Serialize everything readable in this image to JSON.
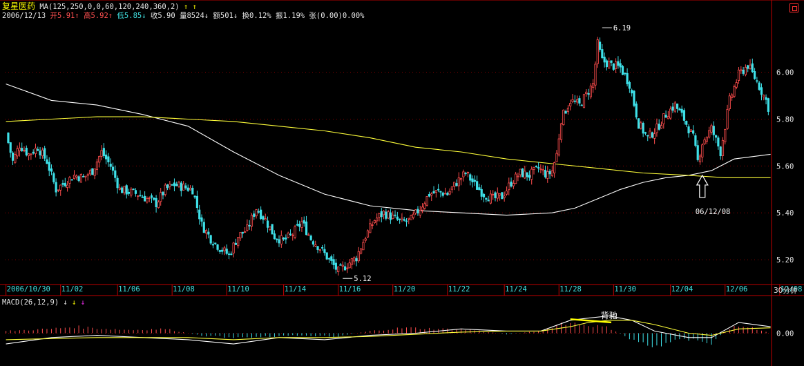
{
  "header": {
    "stock_name": "复星医药",
    "ma_label": "MA(125,250,0,0,60,120,240,360,2)",
    "ma_arrows": "↑ ↑",
    "date": "2006/12/13",
    "open_label": "开",
    "open_value": "5.91↑",
    "high_label": "高",
    "high_value": "5.92↑",
    "low_label": "低",
    "low_value": "5.85↓",
    "close_label": "收",
    "close_value": "5.90",
    "volume": "量8524↓",
    "amount": "额501↓",
    "turnover": "换0.12%",
    "amplitude": "振1.19%",
    "change": "张(0.00)0.00%"
  },
  "macd_header": {
    "label": "MACD(26,12,9)",
    "arrow1": "↓",
    "arrow2": "↓",
    "arrow3": "↓"
  },
  "period_label": "30分钟",
  "colors": {
    "up": "#ff4d4d",
    "down": "#3ee0e8",
    "ma1": "#ffffff",
    "ma2": "#ffff3a",
    "grid": "#8a0000",
    "axis": "#c00000"
  },
  "chart_data": {
    "type": "candlestick",
    "timeframe": "30分钟",
    "x_tick_labels": [
      "2006/10/30",
      "11/02",
      "11/06",
      "11/08",
      "11/10",
      "11/14",
      "11/16",
      "11/20",
      "11/22",
      "11/24",
      "11/28",
      "11/30",
      "12/04",
      "12/06",
      "12/08"
    ],
    "y_ticks": [
      5.2,
      5.4,
      5.6,
      5.8,
      6.0
    ],
    "y_tick_labels": [
      "5.20",
      "5.40",
      "5.60",
      "5.80",
      "6.00"
    ],
    "ylim": [
      5.1,
      6.22
    ],
    "price_path": [
      [
        0,
        5.74
      ],
      [
        3,
        5.62
      ],
      [
        6,
        5.69
      ],
      [
        10,
        5.65
      ],
      [
        14,
        5.68
      ],
      [
        18,
        5.62
      ],
      [
        22,
        5.5
      ],
      [
        26,
        5.53
      ],
      [
        30,
        5.56
      ],
      [
        34,
        5.55
      ],
      [
        38,
        5.58
      ],
      [
        42,
        5.66
      ],
      [
        46,
        5.6
      ],
      [
        50,
        5.5
      ],
      [
        54,
        5.49
      ],
      [
        58,
        5.48
      ],
      [
        62,
        5.46
      ],
      [
        66,
        5.44
      ],
      [
        70,
        5.5
      ],
      [
        74,
        5.52
      ],
      [
        78,
        5.51
      ],
      [
        82,
        5.5
      ],
      [
        86,
        5.35
      ],
      [
        90,
        5.29
      ],
      [
        94,
        5.25
      ],
      [
        98,
        5.22
      ],
      [
        102,
        5.3
      ],
      [
        106,
        5.33
      ],
      [
        110,
        5.42
      ],
      [
        114,
        5.37
      ],
      [
        118,
        5.3
      ],
      [
        122,
        5.28
      ],
      [
        126,
        5.31
      ],
      [
        130,
        5.36
      ],
      [
        134,
        5.29
      ],
      [
        138,
        5.25
      ],
      [
        142,
        5.2
      ],
      [
        146,
        5.15
      ],
      [
        150,
        5.18
      ],
      [
        154,
        5.21
      ],
      [
        158,
        5.3
      ],
      [
        162,
        5.37
      ],
      [
        166,
        5.4
      ],
      [
        170,
        5.38
      ],
      [
        174,
        5.36
      ],
      [
        178,
        5.37
      ],
      [
        182,
        5.42
      ],
      [
        186,
        5.48
      ],
      [
        190,
        5.49
      ],
      [
        194,
        5.48
      ],
      [
        198,
        5.53
      ],
      [
        202,
        5.57
      ],
      [
        206,
        5.52
      ],
      [
        210,
        5.48
      ],
      [
        214,
        5.46
      ],
      [
        218,
        5.47
      ],
      [
        222,
        5.53
      ],
      [
        226,
        5.57
      ],
      [
        230,
        5.56
      ],
      [
        234,
        5.59
      ],
      [
        238,
        5.56
      ],
      [
        240,
        5.58
      ],
      [
        242,
        5.65
      ],
      [
        244,
        5.8
      ],
      [
        248,
        5.88
      ],
      [
        252,
        5.86
      ],
      [
        256,
        5.92
      ],
      [
        258,
        5.95
      ],
      [
        260,
        6.12
      ],
      [
        262,
        6.05
      ],
      [
        266,
        6.03
      ],
      [
        270,
        6.02
      ],
      [
        274,
        5.95
      ],
      [
        278,
        5.78
      ],
      [
        282,
        5.72
      ],
      [
        286,
        5.76
      ],
      [
        290,
        5.82
      ],
      [
        294,
        5.86
      ],
      [
        298,
        5.8
      ],
      [
        302,
        5.72
      ],
      [
        304,
        5.62
      ],
      [
        306,
        5.7
      ],
      [
        310,
        5.76
      ],
      [
        314,
        5.66
      ],
      [
        318,
        5.88
      ],
      [
        322,
        5.99
      ],
      [
        326,
        6.03
      ],
      [
        330,
        5.96
      ],
      [
        334,
        5.88
      ],
      [
        336,
        5.82
      ]
    ],
    "ma_white": [
      [
        0,
        5.95
      ],
      [
        20,
        5.88
      ],
      [
        40,
        5.86
      ],
      [
        60,
        5.82
      ],
      [
        80,
        5.77
      ],
      [
        100,
        5.66
      ],
      [
        120,
        5.56
      ],
      [
        140,
        5.48
      ],
      [
        160,
        5.43
      ],
      [
        180,
        5.41
      ],
      [
        200,
        5.4
      ],
      [
        220,
        5.39
      ],
      [
        240,
        5.4
      ],
      [
        250,
        5.42
      ],
      [
        260,
        5.46
      ],
      [
        270,
        5.5
      ],
      [
        280,
        5.53
      ],
      [
        290,
        5.55
      ],
      [
        300,
        5.56
      ],
      [
        310,
        5.58
      ],
      [
        320,
        5.63
      ],
      [
        336,
        5.65
      ]
    ],
    "ma_yellow": [
      [
        0,
        5.79
      ],
      [
        20,
        5.8
      ],
      [
        40,
        5.81
      ],
      [
        60,
        5.81
      ],
      [
        80,
        5.8
      ],
      [
        100,
        5.79
      ],
      [
        120,
        5.77
      ],
      [
        140,
        5.75
      ],
      [
        160,
        5.72
      ],
      [
        180,
        5.68
      ],
      [
        200,
        5.66
      ],
      [
        220,
        5.63
      ],
      [
        240,
        5.61
      ],
      [
        260,
        5.59
      ],
      [
        280,
        5.57
      ],
      [
        300,
        5.56
      ],
      [
        316,
        5.55
      ],
      [
        336,
        5.55
      ]
    ],
    "annotations": [
      {
        "text": "6.19",
        "x": 262,
        "y": 6.19,
        "kind": "high"
      },
      {
        "text": "5.12",
        "x": 148,
        "y": 5.12,
        "kind": "low"
      },
      {
        "text": "06/12/08",
        "x": 306,
        "y": 5.56,
        "kind": "arrow-date"
      },
      {
        "text": "背驰",
        "kind": "macd-label"
      }
    ],
    "macd": {
      "y_tick_labels": [
        "0.00"
      ],
      "ylim": [
        -0.12,
        0.12
      ],
      "hist_path": [
        [
          0,
          0.01
        ],
        [
          20,
          0.02
        ],
        [
          30,
          0.03
        ],
        [
          45,
          0.02
        ],
        [
          55,
          0.015
        ],
        [
          70,
          0.02
        ],
        [
          85,
          -0.01
        ],
        [
          100,
          -0.02
        ],
        [
          115,
          -0.015
        ],
        [
          130,
          -0.01
        ],
        [
          145,
          -0.015
        ],
        [
          160,
          0.01
        ],
        [
          175,
          0.025
        ],
        [
          190,
          0.02
        ],
        [
          205,
          0.015
        ],
        [
          220,
          -0.005
        ],
        [
          235,
          0.01
        ],
        [
          245,
          0.05
        ],
        [
          255,
          0.04
        ],
        [
          265,
          0.025
        ],
        [
          275,
          -0.03
        ],
        [
          285,
          -0.06
        ],
        [
          292,
          -0.04
        ],
        [
          300,
          -0.03
        ],
        [
          310,
          -0.045
        ],
        [
          316,
          0.01
        ],
        [
          322,
          0.035
        ],
        [
          330,
          0.02
        ],
        [
          336,
          0.0
        ]
      ],
      "dif_path": [
        [
          0,
          -0.05
        ],
        [
          20,
          -0.02
        ],
        [
          40,
          -0.01
        ],
        [
          60,
          -0.02
        ],
        [
          80,
          -0.03
        ],
        [
          100,
          -0.05
        ],
        [
          120,
          -0.02
        ],
        [
          140,
          -0.03
        ],
        [
          160,
          -0.01
        ],
        [
          180,
          0.0
        ],
        [
          200,
          0.02
        ],
        [
          220,
          0.01
        ],
        [
          235,
          0.01
        ],
        [
          248,
          0.06
        ],
        [
          256,
          0.07
        ],
        [
          265,
          0.08
        ],
        [
          275,
          0.06
        ],
        [
          285,
          0.01
        ],
        [
          300,
          -0.02
        ],
        [
          310,
          -0.02
        ],
        [
          322,
          0.05
        ],
        [
          336,
          0.03
        ]
      ],
      "dea_path": [
        [
          0,
          -0.03
        ],
        [
          20,
          -0.025
        ],
        [
          40,
          -0.02
        ],
        [
          60,
          -0.02
        ],
        [
          80,
          -0.02
        ],
        [
          100,
          -0.03
        ],
        [
          120,
          -0.02
        ],
        [
          140,
          -0.02
        ],
        [
          160,
          -0.015
        ],
        [
          180,
          -0.005
        ],
        [
          200,
          0.005
        ],
        [
          220,
          0.01
        ],
        [
          235,
          0.01
        ],
        [
          248,
          0.03
        ],
        [
          256,
          0.05
        ],
        [
          265,
          0.06
        ],
        [
          275,
          0.06
        ],
        [
          285,
          0.04
        ],
        [
          300,
          0.0
        ],
        [
          310,
          -0.01
        ],
        [
          322,
          0.02
        ],
        [
          336,
          0.025
        ]
      ],
      "divergence_segment": [
        [
          248,
          0.065
        ],
        [
          266,
          0.05
        ]
      ]
    }
  }
}
